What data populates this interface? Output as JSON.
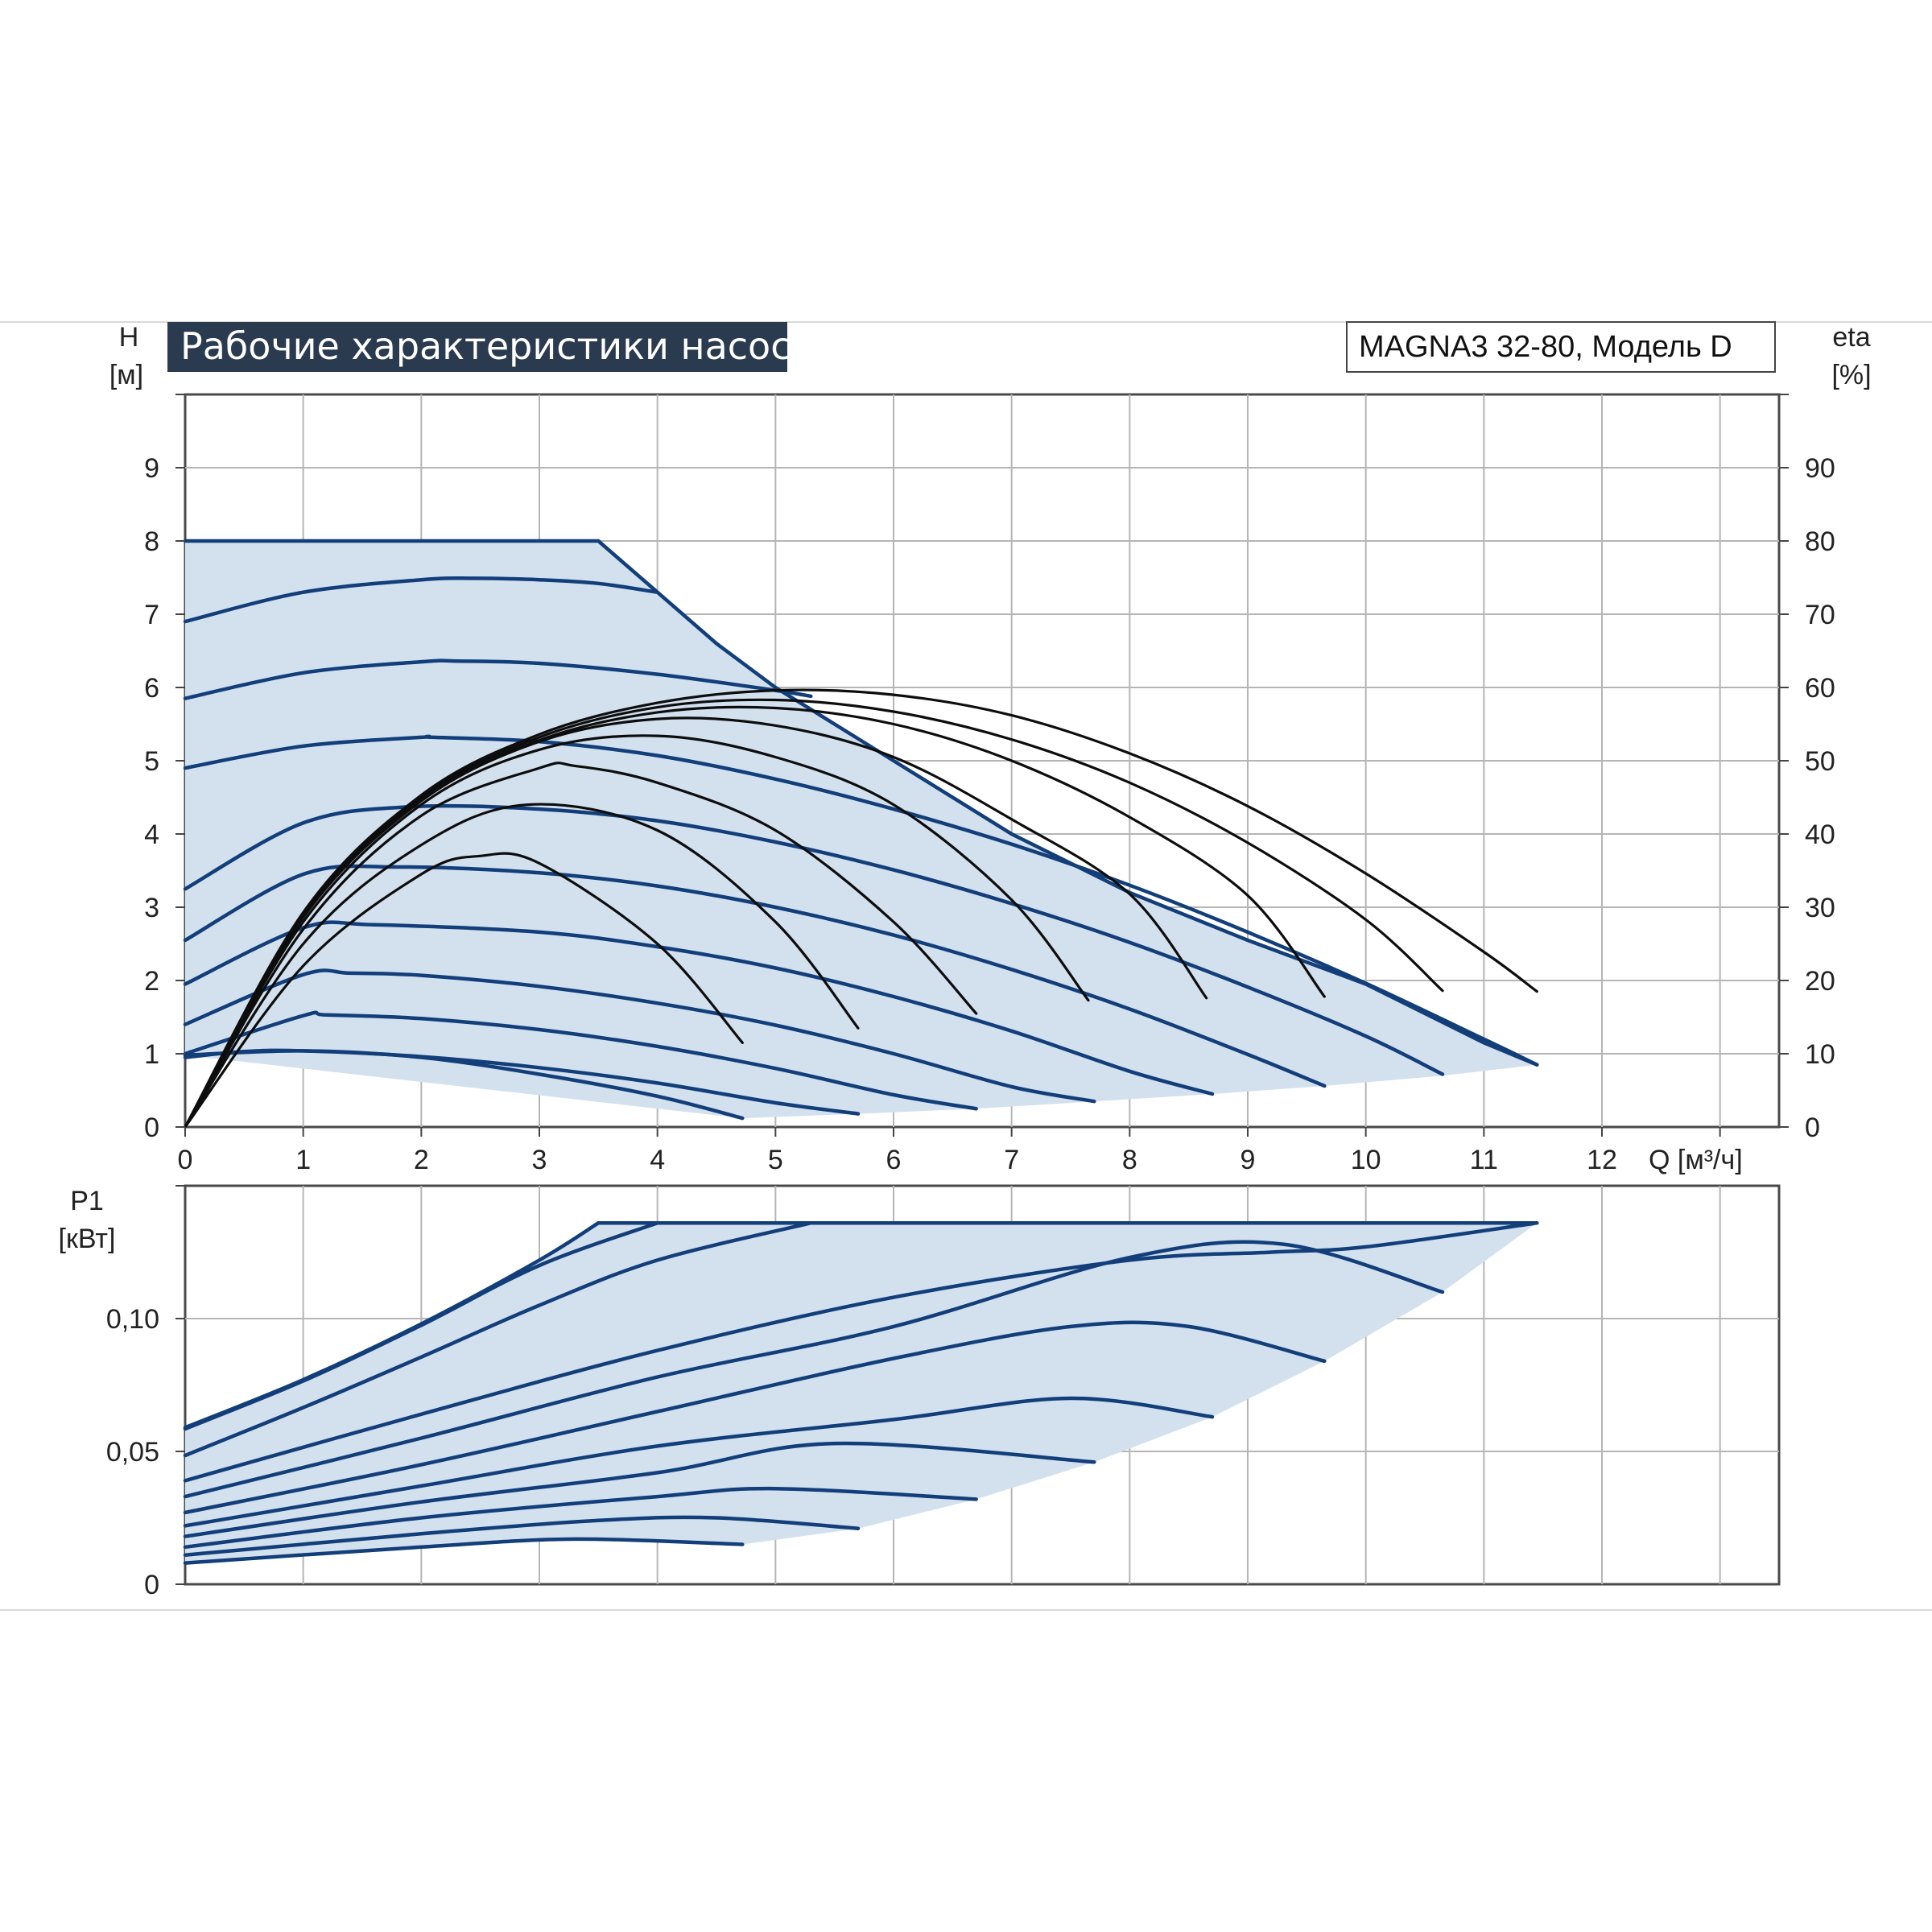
{
  "header": {
    "title": "Рабочие характеристики насоса",
    "model": "MAGNA3 32-80, Модель D"
  },
  "colors": {
    "header_bg": "#2a3a4f",
    "curve": "#123e7a",
    "area": "#d3e0ee",
    "efficiency": "#0d0d0d"
  },
  "chart_data": [
    {
      "type": "line",
      "title": "Рабочие характеристики насоса",
      "xlabel": "Q [м³/ч]",
      "ylabel_line1": "H",
      "ylabel_line2": "[м]",
      "y2label_line1": "eta",
      "y2label_line2": "[%]",
      "xlim": [
        0,
        13.5
      ],
      "ylim": [
        0,
        10
      ],
      "y2lim": [
        0,
        100
      ],
      "grid": true,
      "x_ticks": [
        "0",
        "1",
        "2",
        "3",
        "4",
        "5",
        "6",
        "7",
        "8",
        "9",
        "10",
        "11",
        "12"
      ],
      "y_ticks": [
        "0",
        "1",
        "2",
        "3",
        "4",
        "5",
        "6",
        "7",
        "8",
        "9"
      ],
      "y2_ticks": [
        "0",
        "10",
        "20",
        "30",
        "40",
        "50",
        "60",
        "70",
        "80",
        "90"
      ],
      "max_curve": {
        "name": "max",
        "x": [
          0,
          3.5,
          4.0,
          4.5,
          5.0,
          5.5,
          6.0,
          7.0,
          8.0,
          9.0,
          10.0,
          11.0,
          11.45
        ],
        "y": [
          8.0,
          8.0,
          7.3,
          6.6,
          6.0,
          5.5,
          5.0,
          4.0,
          3.2,
          2.55,
          1.95,
          1.15,
          0.85
        ]
      },
      "bottom_boundary": {
        "x": [
          4.72,
          5.7,
          6.7,
          7.7,
          8.7,
          9.65,
          10.65,
          11.45
        ],
        "y": [
          0.12,
          0.18,
          0.25,
          0.35,
          0.45,
          0.56,
          0.7,
          0.85
        ]
      },
      "head_curves": [
        {
          "x": [
            0,
            1,
            2,
            2.45,
            3,
            3.5,
            4.0
          ],
          "y": [
            6.9,
            7.3,
            7.47,
            7.49,
            7.47,
            7.42,
            7.3
          ]
        },
        {
          "x": [
            0,
            1,
            2,
            2.3,
            3,
            4,
            5,
            5.3
          ],
          "y": [
            5.85,
            6.2,
            6.35,
            6.36,
            6.33,
            6.18,
            5.96,
            5.88
          ]
        },
        {
          "x": [
            0,
            1,
            2,
            2.1,
            3,
            4,
            5,
            6,
            7,
            8,
            9,
            10,
            11,
            11.45
          ],
          "y": [
            4.9,
            5.2,
            5.32,
            5.32,
            5.26,
            5.07,
            4.75,
            4.34,
            3.86,
            3.3,
            2.66,
            1.96,
            1.2,
            0.85
          ]
        },
        {
          "x": [
            0,
            1,
            1.9,
            3,
            4,
            5,
            6,
            7,
            8,
            9,
            10,
            10.65
          ],
          "y": [
            3.25,
            4.15,
            4.37,
            4.34,
            4.18,
            3.89,
            3.51,
            3.05,
            2.52,
            1.91,
            1.24,
            0.72
          ]
        },
        {
          "x": [
            0,
            1,
            1.8,
            3,
            4,
            5,
            6,
            7,
            8,
            9,
            9.65
          ],
          "y": [
            2.55,
            3.45,
            3.55,
            3.47,
            3.29,
            3.0,
            2.62,
            2.15,
            1.61,
            0.99,
            0.56
          ]
        },
        {
          "x": [
            0,
            1,
            1.6,
            3,
            4,
            5,
            6,
            7,
            8,
            8.7
          ],
          "y": [
            1.95,
            2.72,
            2.76,
            2.66,
            2.46,
            2.17,
            1.78,
            1.31,
            0.76,
            0.45
          ]
        },
        {
          "x": [
            0,
            1,
            1.4,
            2,
            3,
            4,
            5,
            6,
            7,
            7.7
          ],
          "y": [
            1.4,
            2.08,
            2.1,
            2.07,
            1.92,
            1.69,
            1.39,
            1.0,
            0.55,
            0.35
          ]
        },
        {
          "x": [
            0,
            1,
            1.2,
            2,
            3,
            4,
            5,
            6,
            6.7
          ],
          "y": [
            1.0,
            1.52,
            1.53,
            1.48,
            1.33,
            1.1,
            0.8,
            0.44,
            0.25
          ]
        },
        {
          "x": [
            0,
            0.5,
            1,
            2,
            3,
            4,
            5,
            5.7
          ],
          "y": [
            0.95,
            1.03,
            1.04,
            0.96,
            0.81,
            0.6,
            0.33,
            0.18
          ]
        },
        {
          "x": [
            0,
            1,
            2,
            3,
            4,
            4.72
          ],
          "y": [
            0.98,
            1.04,
            0.95,
            0.72,
            0.42,
            0.12
          ]
        }
      ],
      "efficiency_curves": [
        {
          "x": [
            0,
            1,
            2,
            3,
            4,
            5,
            6,
            7,
            8,
            9,
            10,
            11,
            11.45
          ],
          "eta": [
            0,
            29.3,
            45.3,
            53.6,
            57.9,
            59.6,
            59.0,
            56.2,
            51.0,
            43.8,
            34.6,
            23.9,
            18.5
          ]
        },
        {
          "x": [
            0,
            1,
            2,
            3,
            4,
            5,
            6,
            7,
            8,
            9,
            10,
            10.65
          ],
          "eta": [
            0,
            29,
            45,
            53.2,
            57.3,
            58.3,
            56.7,
            52.9,
            47.0,
            38.8,
            28.3,
            18.6
          ]
        },
        {
          "x": [
            0,
            1,
            2,
            3,
            4,
            5,
            6,
            7,
            8,
            9,
            9.65
          ],
          "eta": [
            0,
            28.8,
            44.8,
            52.8,
            56.6,
            57.2,
            55.0,
            50.0,
            42.3,
            31.6,
            17.8
          ]
        },
        {
          "x": [
            0,
            1,
            2,
            3,
            4,
            5,
            6,
            7,
            8,
            8.65
          ],
          "eta": [
            0,
            28.6,
            44.5,
            52.6,
            55.7,
            54.8,
            50.5,
            42.0,
            31.8,
            17.6
          ]
        },
        {
          "x": [
            0,
            1,
            2,
            3,
            4,
            5,
            6,
            7,
            7.65
          ],
          "eta": [
            0,
            28,
            44,
            51.5,
            53.4,
            50.5,
            44.0,
            31.0,
            17.3
          ]
        },
        {
          "x": [
            0,
            1,
            2,
            3,
            3.3,
            4,
            5,
            6,
            6.7
          ],
          "eta": [
            0,
            27,
            42.5,
            49.0,
            49.3,
            47.0,
            40.5,
            28.0,
            15.5
          ]
        },
        {
          "x": [
            0,
            1,
            2,
            2.9,
            4,
            5,
            5.7
          ],
          "eta": [
            0,
            25,
            38.5,
            44.0,
            40.5,
            28.0,
            13.5
          ]
        },
        {
          "x": [
            0,
            1,
            2,
            2.5,
            3,
            4,
            4.72
          ],
          "eta": [
            0,
            22,
            34.5,
            37.0,
            36.0,
            25.0,
            11.5
          ]
        }
      ]
    },
    {
      "type": "line",
      "xlabel": "",
      "ylabel_line1": "P1",
      "ylabel_line2": "[кВт]",
      "xlim": [
        0,
        13.5
      ],
      "ylim": [
        0,
        0.15
      ],
      "grid": true,
      "y_ticks": [
        "0",
        "0,05",
        "0,10"
      ],
      "max_curve": {
        "x": [
          0,
          1,
          2,
          3,
          3.5,
          6,
          8,
          10,
          11.45
        ],
        "y": [
          0.059,
          0.077,
          0.098,
          0.122,
          0.136,
          0.136,
          0.136,
          0.136,
          0.136
        ]
      },
      "bottom_boundary": {
        "x": [
          4.72,
          5.7,
          6.7,
          7.7,
          8.7,
          9.65,
          10.65,
          11.45
        ],
        "y": [
          0.015,
          0.021,
          0.032,
          0.046,
          0.063,
          0.084,
          0.11,
          0.136
        ]
      },
      "power_curves": [
        {
          "x": [
            0,
            1,
            2,
            3,
            4.0
          ],
          "y": [
            0.0585,
            0.0765,
            0.0975,
            0.12,
            0.136
          ]
        },
        {
          "x": [
            0,
            1,
            2,
            3,
            4,
            5.3
          ],
          "y": [
            0.0485,
            0.0665,
            0.0855,
            0.105,
            0.122,
            0.136
          ]
        },
        {
          "x": [
            0,
            2,
            4,
            6,
            8,
            9.2,
            10,
            11.45
          ],
          "y": [
            0.039,
            0.064,
            0.088,
            0.108,
            0.122,
            0.125,
            0.127,
            0.136
          ]
        },
        {
          "x": [
            0,
            2,
            4,
            6,
            8,
            9.3,
            10.65
          ],
          "y": [
            0.033,
            0.055,
            0.078,
            0.097,
            0.123,
            0.128,
            0.11
          ]
        },
        {
          "x": [
            0,
            2,
            4,
            6,
            7.5,
            8.5,
            9.65
          ],
          "y": [
            0.027,
            0.045,
            0.065,
            0.085,
            0.097,
            0.097,
            0.084
          ]
        },
        {
          "x": [
            0,
            2,
            4,
            6,
            7.5,
            8.7
          ],
          "y": [
            0.022,
            0.037,
            0.052,
            0.062,
            0.07,
            0.063
          ]
        },
        {
          "x": [
            0,
            2,
            4,
            5.5,
            7.7
          ],
          "y": [
            0.018,
            0.031,
            0.042,
            0.053,
            0.046
          ]
        },
        {
          "x": [
            0,
            2,
            4,
            5,
            6.7
          ],
          "y": [
            0.014,
            0.025,
            0.033,
            0.036,
            0.032
          ]
        },
        {
          "x": [
            0,
            2,
            3.5,
            4.5,
            5.7
          ],
          "y": [
            0.011,
            0.019,
            0.024,
            0.025,
            0.021
          ]
        },
        {
          "x": [
            0,
            2,
            3.3,
            4.72
          ],
          "y": [
            0.008,
            0.014,
            0.017,
            0.015
          ]
        }
      ]
    }
  ]
}
